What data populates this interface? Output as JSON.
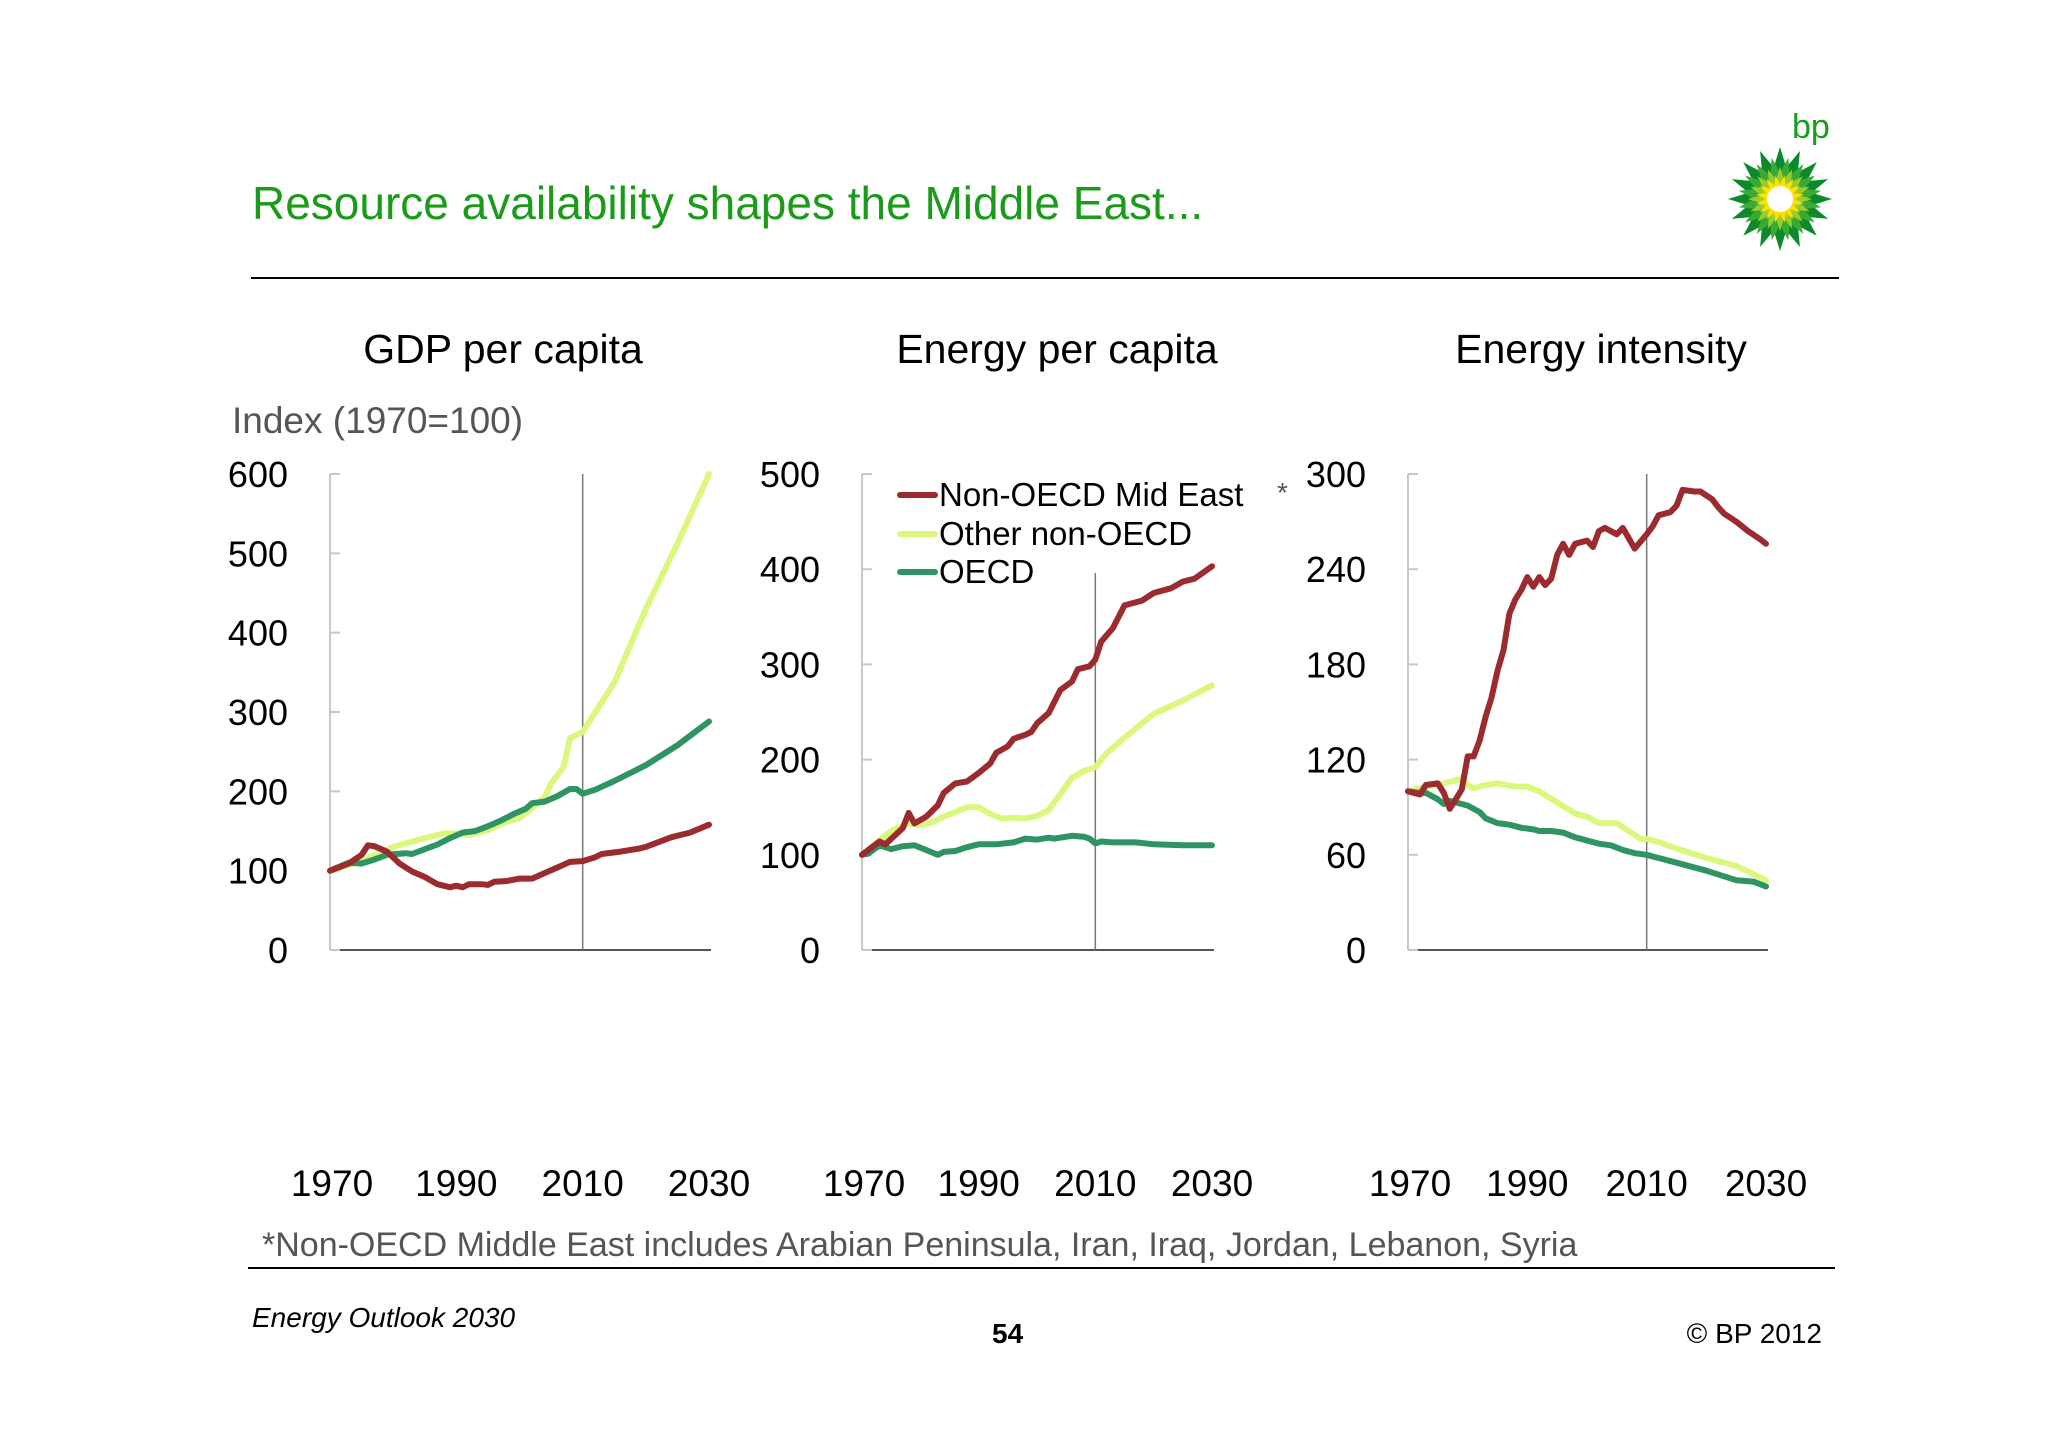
{
  "header": {
    "title": "Resource availability shapes the Middle East...",
    "logo_text": "bp"
  },
  "y_unit_label": "Index (1970=100)",
  "legend": {
    "items": [
      "Non-OECD Mid East",
      "Other non-OECD",
      "OECD"
    ],
    "asterisk": "*"
  },
  "colors": {
    "non_oecd_mid_east": "#9b2b2f",
    "other_non_oecd": "#dcf77e",
    "oecd": "#2e9462",
    "title_green": "#1a9b1a"
  },
  "chart_data": [
    {
      "type": "line",
      "title": "GDP per capita",
      "ylabel": "Index (1970=100)",
      "xlim": [
        1970,
        2030
      ],
      "ylim": [
        0,
        600
      ],
      "yticks": [
        "0",
        "100",
        "200",
        "300",
        "400",
        "500",
        "600"
      ],
      "xticks": [
        "1970",
        "1990",
        "2010",
        "2030"
      ],
      "reference_line_year": 2010,
      "series": [
        {
          "name": "Non-OECD Mid East",
          "x": [
            1970,
            1973,
            1975,
            1976,
            1977,
            1979,
            1981,
            1983,
            1985,
            1987,
            1989,
            1990,
            1991,
            1992,
            1994,
            1995,
            1996,
            1998,
            2000,
            2002,
            2004,
            2006,
            2008,
            2010,
            2012,
            2013,
            2016,
            2019,
            2020,
            2024,
            2027,
            2030
          ],
          "y": [
            100,
            109,
            120,
            132,
            131,
            124,
            109,
            99,
            92,
            83,
            79,
            81,
            79,
            83,
            83,
            82,
            86,
            87,
            90,
            90,
            97,
            104,
            111,
            112,
            117,
            121,
            124,
            128,
            130,
            142,
            148,
            158
          ]
        },
        {
          "name": "Other non-OECD",
          "x": [
            1970,
            1975,
            1980,
            1985,
            1988,
            1990,
            1992,
            1995,
            1998,
            2000,
            2002,
            2004,
            2005,
            2007,
            2008,
            2010,
            2015,
            2020,
            2025,
            2030
          ],
          "y": [
            100,
            112,
            130,
            141,
            147,
            147,
            145,
            151,
            162,
            166,
            179,
            193,
            210,
            231,
            267,
            275,
            337,
            430,
            512,
            600
          ]
        },
        {
          "name": "OECD",
          "x": [
            1970,
            1973,
            1975,
            1977,
            1979,
            1982,
            1983,
            1985,
            1987,
            1989,
            1991,
            1993,
            1995,
            1997,
            1999,
            2001,
            2002,
            2004,
            2006,
            2008,
            2009,
            2010,
            2012,
            2015,
            2020,
            2025,
            2030
          ],
          "y": [
            100,
            110,
            109,
            114,
            120,
            122,
            121,
            127,
            133,
            141,
            148,
            150,
            156,
            163,
            171,
            178,
            185,
            187,
            194,
            203,
            203,
            197,
            202,
            213,
            233,
            258,
            288
          ]
        }
      ]
    },
    {
      "type": "line",
      "title": "Energy per capita",
      "xlim": [
        1970,
        2030
      ],
      "ylim": [
        0,
        500
      ],
      "yticks": [
        "0",
        "100",
        "200",
        "300",
        "400",
        "500"
      ],
      "xticks": [
        "1970",
        "1990",
        "2010",
        "2030"
      ],
      "reference_line_year": 2010,
      "legend": "top-left",
      "series": [
        {
          "name": "Non-OECD Mid East",
          "x": [
            1970,
            1973,
            1974,
            1977,
            1978,
            1979,
            1981,
            1983,
            1984,
            1986,
            1988,
            1990,
            1992,
            1993,
            1995,
            1996,
            1998,
            1999,
            2000,
            2002,
            2004,
            2006,
            2007,
            2009,
            2010,
            2011,
            2012,
            2013,
            2014,
            2015,
            2018,
            2020,
            2023,
            2025,
            2027,
            2030
          ],
          "y": [
            100,
            114,
            111,
            128,
            144,
            133,
            140,
            152,
            165,
            175,
            177,
            186,
            196,
            207,
            214,
            222,
            226,
            229,
            238,
            249,
            273,
            282,
            295,
            298,
            305,
            324,
            331,
            338,
            350,
            362,
            367,
            375,
            380,
            387,
            390,
            403
          ]
        },
        {
          "name": "Other non-OECD",
          "x": [
            1970,
            1975,
            1978,
            1980,
            1982,
            1984,
            1986,
            1988,
            1990,
            1992,
            1994,
            1996,
            1998,
            2000,
            2002,
            2004,
            2006,
            2008,
            2010,
            2012,
            2015,
            2020,
            2025,
            2030
          ],
          "y": [
            100,
            125,
            133,
            131,
            134,
            140,
            145,
            150,
            150,
            143,
            138,
            139,
            138,
            141,
            147,
            164,
            181,
            188,
            192,
            207,
            223,
            248,
            262,
            278
          ]
        },
        {
          "name": "OECD",
          "x": [
            1970,
            1971,
            1973,
            1975,
            1977,
            1979,
            1981,
            1983,
            1984,
            1986,
            1988,
            1990,
            1993,
            1996,
            1998,
            2000,
            2002,
            2003,
            2006,
            2008,
            2009,
            2010,
            2011,
            2013,
            2017,
            2020,
            2025,
            2030
          ],
          "y": [
            100,
            101,
            110,
            106,
            109,
            110,
            105,
            100,
            103,
            104,
            108,
            111,
            111,
            113,
            117,
            116,
            118,
            117,
            120,
            119,
            117,
            112,
            114,
            113,
            113,
            111,
            110,
            110
          ]
        }
      ]
    },
    {
      "type": "line",
      "title": "Energy intensity",
      "xlim": [
        1970,
        2030
      ],
      "ylim": [
        0,
        300
      ],
      "yticks": [
        "0",
        "60",
        "120",
        "180",
        "240",
        "300"
      ],
      "xticks": [
        "1970",
        "1990",
        "2010",
        "2030"
      ],
      "reference_line_year": 2010,
      "series": [
        {
          "name": "Non-OECD Mid East",
          "x": [
            1970,
            1972,
            1973,
            1975,
            1976,
            1977,
            1978,
            1979,
            1980,
            1981,
            1982,
            1983,
            1984,
            1985,
            1986,
            1987,
            1988,
            1989,
            1990,
            1991,
            1992,
            1993,
            1994,
            1995,
            1996,
            1997,
            1998,
            2000,
            2001,
            2002,
            2003,
            2005,
            2006,
            2008,
            2010,
            2011,
            2012,
            2014,
            2015,
            2016,
            2018,
            2019,
            2021,
            2022,
            2023,
            2025,
            2027,
            2029,
            2030
          ],
          "y": [
            100,
            98,
            104,
            105,
            99,
            89,
            95,
            101,
            122,
            122,
            132,
            147,
            159,
            176,
            189,
            212,
            221,
            227,
            235,
            229,
            235,
            230,
            234,
            249,
            256,
            249,
            256,
            258,
            254,
            264,
            266,
            262,
            266,
            253,
            262,
            267,
            274,
            276,
            280,
            290,
            289,
            289,
            284,
            279,
            275,
            270,
            264,
            259,
            256
          ]
        },
        {
          "name": "Other non-OECD",
          "x": [
            1970,
            1973,
            1975,
            1979,
            1980,
            1981,
            1983,
            1985,
            1988,
            1990,
            1992,
            1995,
            1998,
            2000,
            2002,
            2005,
            2007,
            2009,
            2010,
            2012,
            2015,
            2020,
            2025,
            2030
          ],
          "y": [
            100,
            103,
            104,
            108,
            104,
            102,
            104,
            105,
            103,
            103,
            100,
            93,
            86,
            84,
            80,
            80,
            75,
            70,
            70,
            68,
            64,
            58,
            53,
            44
          ]
        },
        {
          "name": "OECD",
          "x": [
            1970,
            1972,
            1973,
            1975,
            1976,
            1977,
            1978,
            1980,
            1982,
            1983,
            1985,
            1987,
            1989,
            1991,
            1992,
            1994,
            1996,
            1998,
            2000,
            2002,
            2004,
            2006,
            2008,
            2010,
            2012,
            2015,
            2020,
            2025,
            2028,
            2030
          ],
          "y": [
            100,
            99,
            99,
            95,
            92,
            94,
            93,
            91,
            87,
            83,
            80,
            79,
            77,
            76,
            75,
            75,
            74,
            71,
            69,
            67,
            66,
            63,
            61,
            60,
            58,
            55,
            50,
            44,
            43,
            40
          ]
        }
      ]
    }
  ],
  "footnote": "*Non-OECD Middle East includes Arabian Peninsula, Iran, Iraq, Jordan, Lebanon, Syria",
  "footer": {
    "publication": "Energy Outlook 2030",
    "page_number": "54",
    "copyright": "© BP 2012"
  }
}
